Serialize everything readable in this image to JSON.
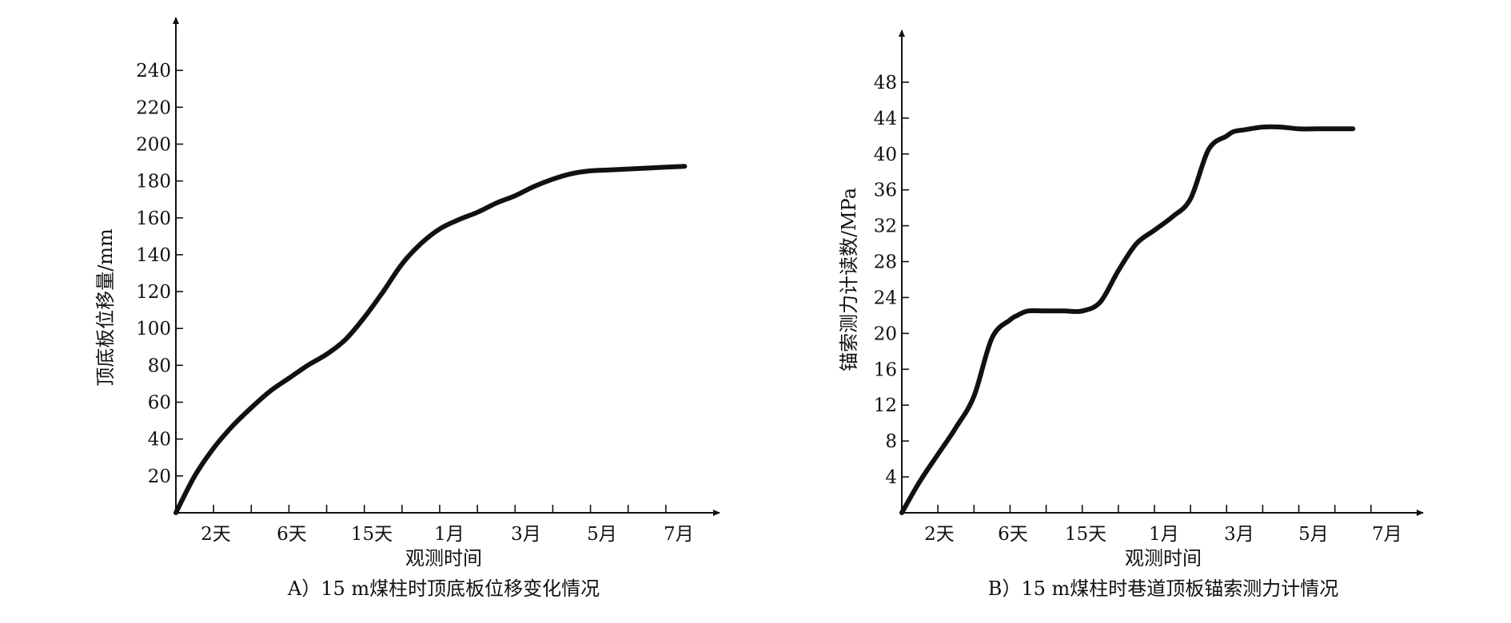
{
  "chart_data": [
    {
      "type": "line",
      "caption": "A）15 m煤柱时顶底板位移变化情况",
      "xlabel": "观测时间",
      "ylabel": "顶底板位移量/mm",
      "x_tick_labels": [
        "2天",
        "6天",
        "15天",
        "1月",
        "3月",
        "5月",
        "7月"
      ],
      "y_ticks": [
        20,
        40,
        60,
        80,
        100,
        120,
        140,
        160,
        180,
        200,
        220,
        240
      ],
      "y_tick_labels": [
        "20",
        "40",
        "60",
        "80",
        "100",
        "120",
        "140",
        "160",
        "180",
        "200",
        "220",
        "240"
      ],
      "ylim": [
        0,
        260
      ],
      "xlim": [
        0,
        14
      ],
      "minor_x_ticks": [
        1,
        2,
        3,
        4,
        5,
        6,
        7,
        8,
        9,
        10,
        11,
        12,
        13
      ],
      "series": [
        {
          "x": [
            0,
            0.5,
            1,
            1.5,
            2,
            2.5,
            3,
            3.5,
            4,
            4.5,
            5,
            5.5,
            6,
            6.5,
            7,
            7.5,
            8,
            8.5,
            9,
            9.5,
            10,
            10.5,
            11,
            11.5,
            12,
            12.5,
            13,
            13.5
          ],
          "y": [
            0,
            20,
            35,
            47,
            57,
            66,
            73,
            80,
            86,
            94,
            106,
            120,
            135,
            146,
            154,
            159,
            163,
            168,
            172,
            177,
            181,
            184,
            185.5,
            186,
            186.5,
            187,
            187.5,
            188
          ]
        }
      ],
      "grid": false
    },
    {
      "type": "line",
      "caption": "B）15 m煤柱时巷道顶板锚索测力计情况",
      "xlabel": "观测时间",
      "ylabel": "锚索测力计读数/MPa",
      "x_tick_labels": [
        "2天",
        "6天",
        "15天",
        "1月",
        "3月",
        "5月",
        "7月"
      ],
      "y_ticks": [
        4,
        8,
        12,
        16,
        20,
        24,
        28,
        32,
        36,
        40,
        44,
        48
      ],
      "y_tick_labels": [
        "4",
        "8",
        "12",
        "16",
        "20",
        "24",
        "28",
        "32",
        "36",
        "40",
        "44",
        "48"
      ],
      "ylim": [
        0,
        52
      ],
      "xlim": [
        0,
        14
      ],
      "minor_x_ticks": [
        1,
        2,
        3,
        4,
        5,
        6,
        7,
        8,
        9,
        10,
        11,
        12,
        13
      ],
      "series": [
        {
          "x": [
            0,
            0.5,
            1,
            1.5,
            2,
            2.5,
            3,
            3.2,
            3.5,
            4,
            4.5,
            5,
            5.5,
            6,
            6.5,
            7,
            7.5,
            8,
            8.5,
            9,
            9.2,
            9.5,
            10,
            10.5,
            11,
            11.5,
            12,
            12.5
          ],
          "y": [
            0,
            3.5,
            6.5,
            9.5,
            13,
            19.5,
            21.5,
            22,
            22.5,
            22.5,
            22.5,
            22.5,
            23.5,
            27,
            30,
            31.5,
            33,
            35,
            40.5,
            42,
            42.5,
            42.7,
            43,
            43,
            42.8,
            42.8,
            42.8,
            42.8
          ]
        }
      ],
      "grid": false
    }
  ]
}
